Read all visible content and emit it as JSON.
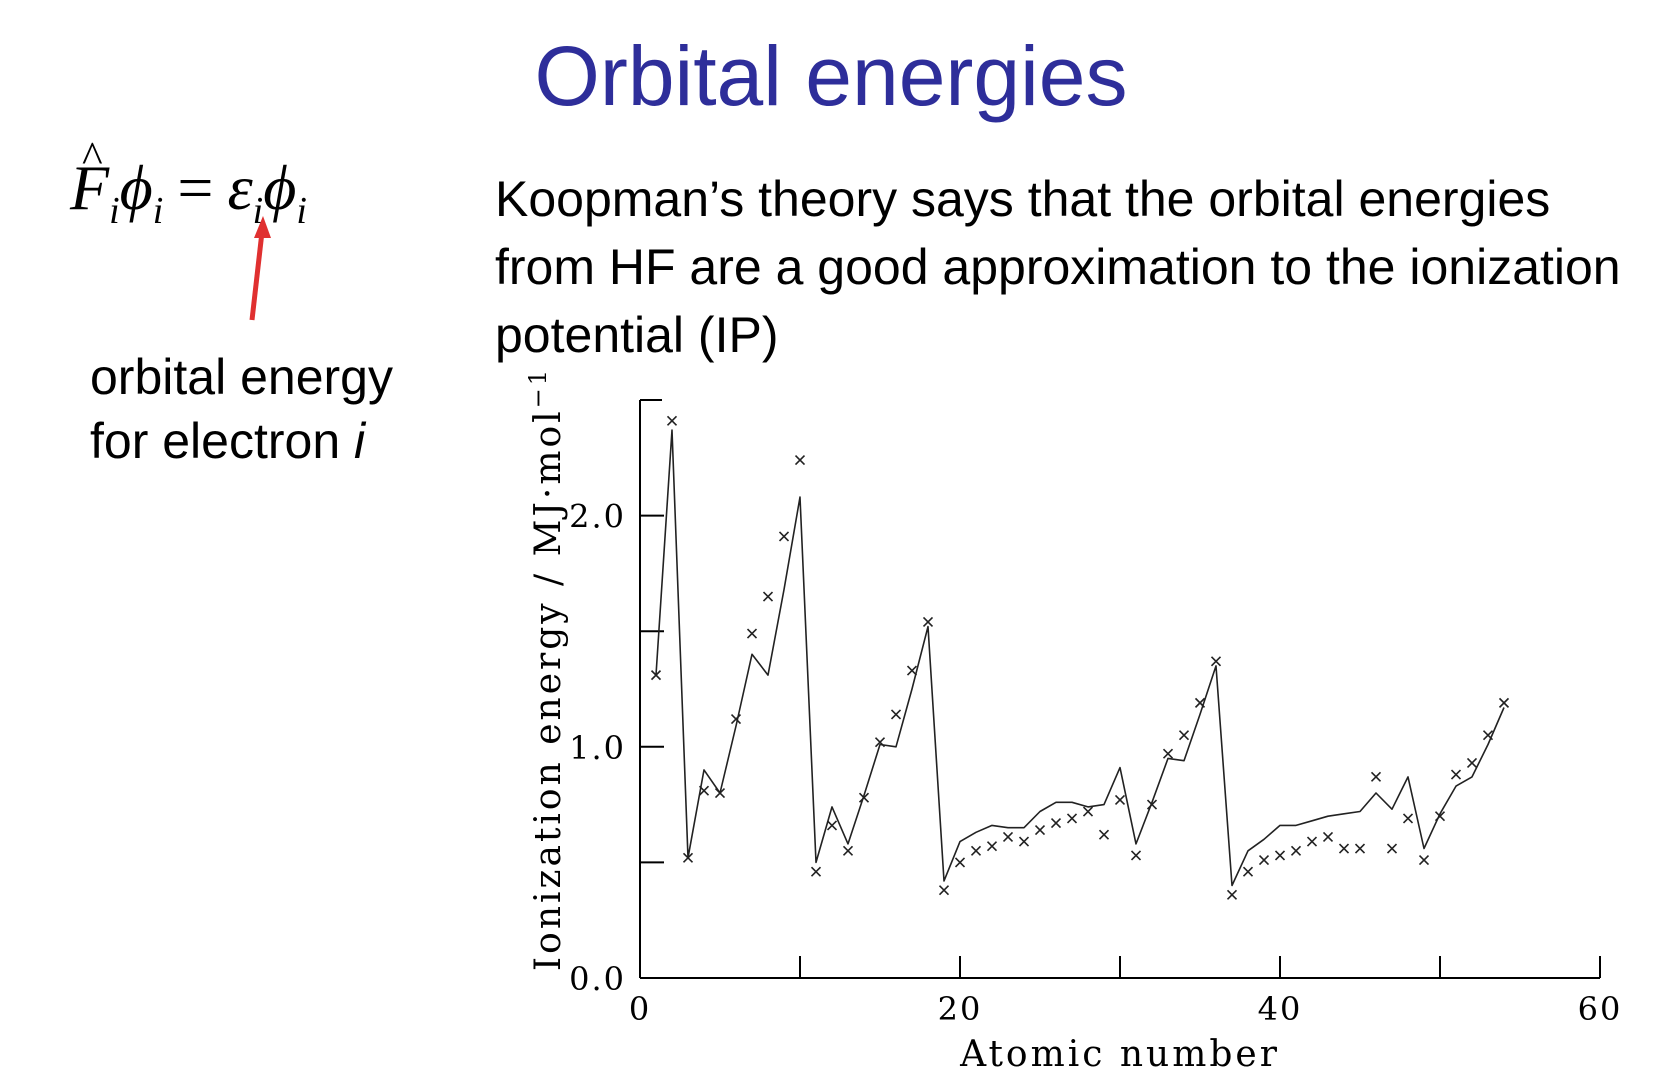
{
  "slide": {
    "title": "Orbital energies",
    "title_color": "#2E2E9A",
    "equation": {
      "F": "F",
      "phi": "ϕ",
      "i": "i",
      "equals": "=",
      "epsilon": "ε"
    },
    "equation_label_line1": "orbital energy",
    "equation_label_line2_prefix": "for electron ",
    "equation_label_line2_var": "i",
    "arrow_color": "#E03030",
    "description": "Koopman’s theory says that the orbital energies from HF are a good approximation to the ionization potential (IP)"
  },
  "chart_data": {
    "type": "line",
    "xlabel": "Atomic number",
    "ylabel": "Ionization energy / MJ·mol",
    "ylabel_superscript": "−1",
    "xlim": [
      0,
      60
    ],
    "ylim": [
      0,
      2.5
    ],
    "x_ticks": [
      0,
      20,
      40,
      60
    ],
    "x_tick_labels": [
      "0",
      "20",
      "40",
      "60"
    ],
    "y_ticks": [
      0.0,
      1.0,
      2.0
    ],
    "y_tick_labels": [
      "0.0",
      "1.0",
      "2.0"
    ],
    "y_minor_ticks": [
      0.5,
      1.5
    ],
    "x_minor_ticks": [
      10,
      30,
      50
    ],
    "series": [
      {
        "style": "line",
        "x": [
          1,
          2,
          3,
          4,
          5,
          6,
          7,
          8,
          9,
          10,
          11,
          12,
          13,
          14,
          15,
          16,
          17,
          18,
          19,
          20,
          21,
          22,
          23,
          24,
          25,
          26,
          27,
          28,
          29,
          30,
          31,
          32,
          33,
          34,
          35,
          36,
          37,
          38,
          39,
          40,
          41,
          42,
          43,
          44,
          45,
          46,
          47,
          48,
          49,
          50,
          51,
          52,
          53,
          54
        ],
        "values": [
          1.31,
          2.37,
          0.52,
          0.9,
          0.8,
          1.09,
          1.4,
          1.31,
          1.68,
          2.08,
          0.5,
          0.74,
          0.58,
          0.79,
          1.01,
          1.0,
          1.25,
          1.52,
          0.42,
          0.59,
          0.63,
          0.66,
          0.65,
          0.65,
          0.72,
          0.76,
          0.76,
          0.74,
          0.75,
          0.91,
          0.58,
          0.76,
          0.95,
          0.94,
          1.14,
          1.35,
          0.4,
          0.55,
          0.6,
          0.66,
          0.66,
          0.68,
          0.7,
          0.71,
          0.72,
          0.8,
          0.73,
          0.87,
          0.56,
          0.71,
          0.83,
          0.87,
          1.01,
          1.17
        ]
      },
      {
        "style": "cross",
        "x": [
          1,
          2,
          3,
          4,
          5,
          6,
          7,
          8,
          9,
          10,
          11,
          12,
          13,
          14,
          15,
          16,
          17,
          18,
          19,
          20,
          21,
          22,
          23,
          24,
          25,
          26,
          27,
          28,
          29,
          30,
          31,
          32,
          33,
          34,
          35,
          36,
          37,
          38,
          39,
          40,
          41,
          42,
          43,
          44,
          45,
          46,
          47,
          48,
          49,
          50,
          51,
          52,
          53,
          54
        ],
        "values": [
          1.31,
          2.41,
          0.52,
          0.81,
          0.8,
          1.12,
          1.49,
          1.65,
          1.91,
          2.24,
          0.46,
          0.66,
          0.55,
          0.78,
          1.02,
          1.14,
          1.33,
          1.54,
          0.38,
          0.5,
          0.55,
          0.57,
          0.61,
          0.59,
          0.64,
          0.67,
          0.69,
          0.72,
          0.62,
          0.77,
          0.53,
          0.75,
          0.97,
          1.05,
          1.19,
          1.37,
          0.36,
          0.46,
          0.51,
          0.53,
          0.55,
          0.59,
          0.61,
          0.56,
          0.56,
          0.87,
          0.56,
          0.69,
          0.51,
          0.7,
          0.88,
          0.93,
          1.05,
          1.19
        ]
      }
    ]
  }
}
